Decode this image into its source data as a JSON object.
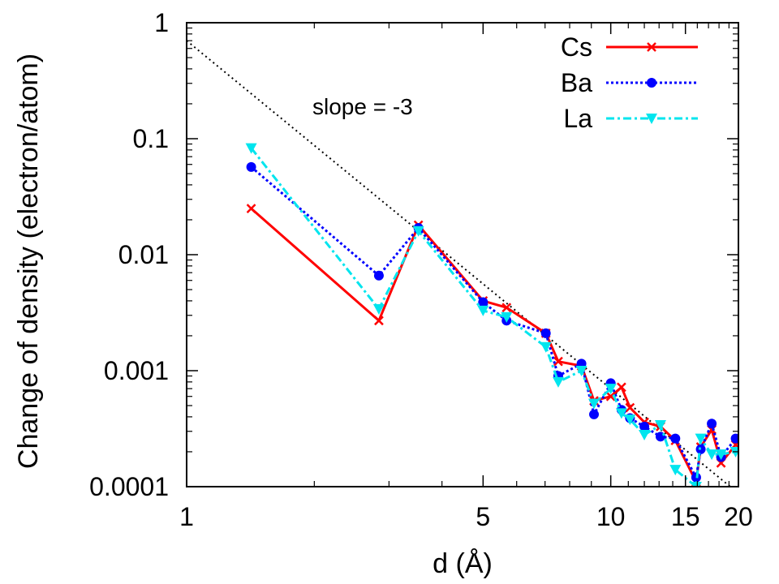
{
  "chart_data": {
    "type": "line",
    "xscale": "log",
    "yscale": "log",
    "xlabel": "d (Å)",
    "ylabel": "Change of density (electron/atom)",
    "xlim": [
      1,
      20
    ],
    "ylim": [
      0.0001,
      1
    ],
    "x_ticks": [
      {
        "value": 1,
        "label": "1"
      },
      {
        "value": 5,
        "label": "5"
      },
      {
        "value": 10,
        "label": "10"
      },
      {
        "value": 15,
        "label": "15"
      },
      {
        "value": 20,
        "label": "20"
      }
    ],
    "y_ticks": [
      {
        "value": 1,
        "label": "1"
      },
      {
        "value": 0.1,
        "label": "0.1"
      },
      {
        "value": 0.01,
        "label": "0.01"
      },
      {
        "value": 0.001,
        "label": "0.001"
      },
      {
        "value": 0.0001,
        "label": "0.0001"
      }
    ],
    "annotation": "slope = -3",
    "reference_line": {
      "name": "slope = -3",
      "x": [
        1,
        20
      ],
      "y": [
        0.7,
        8.75e-05
      ],
      "color": "#000000",
      "style": "dotted"
    },
    "series": [
      {
        "name": "Cs",
        "color": "#ff0000",
        "marker": "x",
        "style": "solid",
        "x": [
          1.42,
          2.84,
          3.52,
          5.0,
          5.68,
          7.03,
          7.52,
          8.53,
          9.13,
          10.0,
          10.6,
          11.1,
          12.0,
          13.1,
          14.2,
          15.9,
          16.3,
          17.3,
          18.2,
          19.7
        ],
        "y": [
          0.025,
          0.0027,
          0.018,
          0.004,
          0.0035,
          0.0021,
          0.0012,
          0.0011,
          0.00055,
          0.0006,
          0.00072,
          0.00048,
          0.00036,
          0.00033,
          0.00025,
          0.00011,
          0.00022,
          0.00031,
          0.00016,
          0.00023
        ]
      },
      {
        "name": "Ba",
        "color": "#0000ff",
        "marker": "circle",
        "style": "dotted",
        "x": [
          1.42,
          2.84,
          3.52,
          5.0,
          5.68,
          7.03,
          7.52,
          8.53,
          9.13,
          10.0,
          10.6,
          11.1,
          12.0,
          13.1,
          14.2,
          15.9,
          16.3,
          17.3,
          18.2,
          19.7
        ],
        "y": [
          0.057,
          0.0066,
          0.017,
          0.0039,
          0.0027,
          0.0021,
          0.0009,
          0.00115,
          0.00042,
          0.00078,
          0.00046,
          0.00039,
          0.00033,
          0.00027,
          0.00026,
          0.00012,
          0.00021,
          0.00035,
          0.00018,
          0.00026
        ]
      },
      {
        "name": "La",
        "color": "#00e5ee",
        "marker": "triangle-down",
        "style": "dashdot",
        "x": [
          1.42,
          2.84,
          3.52,
          5.0,
          5.68,
          7.03,
          7.52,
          8.53,
          9.13,
          10.0,
          10.6,
          11.1,
          12.0,
          13.1,
          14.2,
          15.9,
          16.3,
          17.3,
          18.2,
          19.7
        ],
        "y": [
          0.083,
          0.0034,
          0.016,
          0.0033,
          0.0029,
          0.0016,
          0.0008,
          0.001,
          0.00052,
          0.0007,
          0.00043,
          0.00038,
          0.00028,
          0.00034,
          0.00014,
          0.0001,
          0.00026,
          0.00019,
          0.00019,
          0.0002
        ]
      }
    ],
    "legend_position": "top-right"
  }
}
